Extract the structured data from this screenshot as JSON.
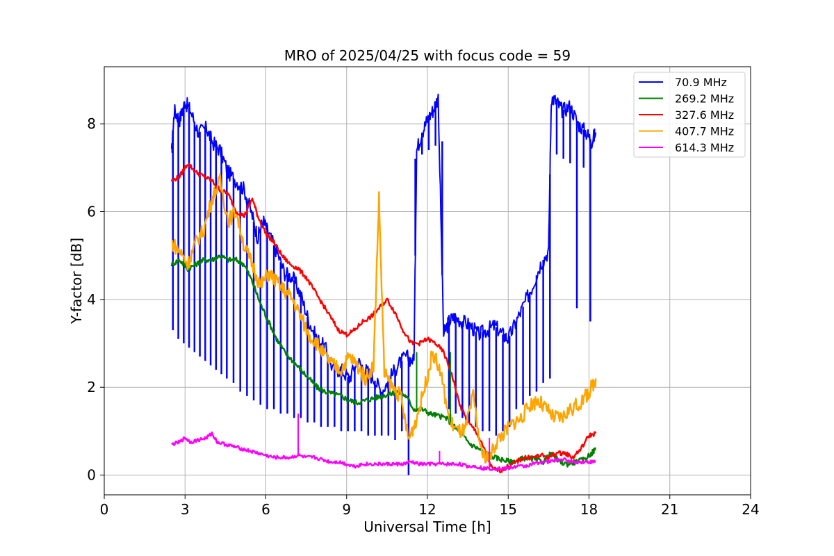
{
  "chart_data": {
    "type": "line",
    "title": "MRO of 2025/04/25 with focus code = 59",
    "xlabel": "Universal Time [h]",
    "ylabel": "Y-factor [dB]",
    "xlim": [
      0,
      24
    ],
    "ylim": [
      -0.45,
      9.3
    ],
    "xticks": [
      0,
      3,
      6,
      9,
      12,
      15,
      18,
      21,
      24
    ],
    "yticks": [
      0,
      2,
      4,
      6,
      8
    ],
    "grid": true,
    "legend_position": "top-right",
    "series": [
      {
        "name": " 70.9 MHz",
        "color": "#0000ff",
        "x": [
          2.5,
          2.6,
          2.8,
          3.0,
          3.2,
          3.5,
          3.8,
          4.0,
          4.3,
          4.6,
          4.9,
          5.2,
          5.5,
          5.7,
          5.9,
          6.1,
          6.4,
          6.7,
          7.0,
          7.3,
          7.6,
          7.9,
          8.2,
          8.5,
          8.8,
          9.1,
          9.4,
          9.7,
          10.0,
          10.3,
          10.6,
          10.9,
          11.2,
          11.5,
          11.6,
          11.8,
          12.0,
          12.2,
          12.4,
          12.6,
          12.8,
          13.0,
          13.3,
          13.6,
          13.9,
          14.2,
          14.5,
          14.8,
          15.0,
          15.3,
          15.6,
          15.9,
          16.2,
          16.5,
          16.6,
          16.8,
          17.0,
          17.3,
          17.6,
          17.9,
          18.1,
          18.25
        ],
        "y": [
          7.3,
          8.3,
          8.1,
          8.5,
          8.3,
          7.8,
          7.9,
          7.6,
          7.4,
          6.9,
          6.7,
          6.5,
          5.9,
          5.4,
          5.8,
          5.5,
          5.1,
          4.6,
          4.5,
          4.1,
          3.5,
          3.1,
          2.9,
          2.4,
          2.4,
          2.2,
          2.6,
          2.4,
          2.2,
          1.9,
          2.2,
          2.5,
          2.7,
          2.6,
          7.4,
          7.8,
          8.1,
          8.3,
          8.6,
          3.2,
          3.5,
          3.6,
          3.5,
          3.4,
          3.2,
          3.3,
          3.4,
          3.2,
          3.1,
          3.5,
          3.9,
          4.3,
          4.8,
          5.1,
          8.6,
          8.5,
          8.3,
          8.4,
          8.0,
          7.8,
          7.6,
          7.8
        ],
        "dip_x": [
          2.55,
          2.75,
          2.95,
          3.15,
          3.35,
          3.55,
          3.75,
          3.95,
          4.15,
          4.35,
          4.55,
          4.8,
          5.05,
          5.3,
          5.55,
          5.8,
          6.05,
          6.3,
          6.55,
          6.8,
          7.05,
          7.3,
          7.55,
          7.8,
          8.05,
          8.3,
          8.55,
          8.8,
          9.05,
          9.3,
          9.55,
          9.8,
          10.05,
          10.3,
          10.55,
          10.8,
          11.05,
          11.3,
          11.55,
          11.8,
          12.05,
          12.3,
          12.55,
          12.8,
          13.05,
          13.3,
          13.55,
          13.8,
          14.05,
          14.3,
          14.55,
          14.8,
          15.05,
          15.3,
          15.55,
          15.8,
          16.05,
          16.3,
          16.55,
          16.8,
          17.05,
          17.3,
          17.55,
          17.8,
          18.05
        ],
        "dip_y": [
          3.3,
          3.1,
          3.0,
          2.9,
          2.8,
          2.7,
          2.6,
          2.5,
          2.4,
          2.3,
          2.2,
          2.1,
          1.9,
          1.8,
          1.7,
          1.6,
          1.5,
          1.5,
          1.4,
          1.4,
          1.3,
          1.3,
          1.2,
          1.2,
          1.1,
          1.1,
          1.1,
          1.0,
          1.0,
          1.0,
          1.0,
          0.9,
          0.9,
          0.9,
          0.9,
          0.8,
          1.0,
          0.0,
          7.2,
          7.3,
          7.4,
          7.5,
          7.6,
          1.5,
          1.4,
          1.3,
          1.2,
          1.1,
          1.0,
          1.0,
          0.9,
          1.0,
          1.1,
          1.5,
          1.6,
          1.8,
          1.9,
          2.1,
          2.2,
          7.3,
          7.2,
          7.1,
          3.8,
          7.0,
          3.5
        ]
      },
      {
        "name": "269.2 MHz",
        "color": "#008000",
        "x": [
          2.5,
          2.8,
          3.1,
          3.4,
          3.7,
          4.0,
          4.3,
          4.6,
          4.9,
          5.2,
          5.5,
          5.8,
          6.1,
          6.4,
          6.7,
          7.0,
          7.3,
          7.6,
          7.9,
          8.2,
          8.5,
          8.8,
          9.1,
          9.4,
          9.7,
          10.0,
          10.3,
          10.6,
          10.9,
          11.2,
          11.5,
          11.8,
          12.1,
          12.4,
          12.7,
          13.0,
          13.3,
          13.6,
          13.9,
          14.2,
          14.5,
          14.8,
          15.1,
          15.4,
          15.7,
          16.0,
          16.3,
          16.6,
          16.9,
          17.2,
          17.5,
          17.8,
          18.1,
          18.25
        ],
        "y": [
          4.8,
          4.9,
          4.7,
          4.8,
          4.9,
          4.9,
          5.0,
          4.9,
          4.9,
          4.8,
          4.4,
          3.9,
          3.5,
          3.1,
          2.8,
          2.6,
          2.4,
          2.2,
          2.0,
          1.9,
          1.85,
          1.8,
          1.7,
          1.65,
          1.7,
          1.75,
          1.8,
          1.85,
          1.9,
          1.8,
          1.5,
          1.5,
          1.4,
          1.35,
          1.3,
          1.1,
          0.9,
          0.7,
          0.6,
          0.5,
          0.4,
          0.35,
          0.3,
          0.35,
          0.4,
          0.35,
          0.3,
          0.5,
          0.3,
          0.25,
          0.3,
          0.35,
          0.5,
          0.6
        ]
      },
      {
        "name": "327.6 MHz",
        "color": "#ff0000",
        "x": [
          2.5,
          2.8,
          3.1,
          3.4,
          3.7,
          4.0,
          4.3,
          4.6,
          4.9,
          5.2,
          5.5,
          5.7,
          6.0,
          6.3,
          6.6,
          6.9,
          7.2,
          7.5,
          7.8,
          8.1,
          8.4,
          8.7,
          9.0,
          9.3,
          9.6,
          9.9,
          10.2,
          10.5,
          10.8,
          11.1,
          11.4,
          11.7,
          12.0,
          12.3,
          12.6,
          12.9,
          13.2,
          13.5,
          13.8,
          14.1,
          14.4,
          14.7,
          15.0,
          15.3,
          15.6,
          15.9,
          16.2,
          16.5,
          16.8,
          17.1,
          17.4,
          17.7,
          18.0,
          18.25
        ],
        "y": [
          6.7,
          6.8,
          7.1,
          6.9,
          6.8,
          6.7,
          6.5,
          6.4,
          6.0,
          5.9,
          6.3,
          5.9,
          5.5,
          5.3,
          5.0,
          4.8,
          4.7,
          4.5,
          4.2,
          3.9,
          3.6,
          3.3,
          3.2,
          3.3,
          3.5,
          3.6,
          3.8,
          4.0,
          3.7,
          3.3,
          3.0,
          3.0,
          3.1,
          3.0,
          2.8,
          2.3,
          1.6,
          1.2,
          1.0,
          0.6,
          0.15,
          0.1,
          0.2,
          0.3,
          0.4,
          0.4,
          0.45,
          0.4,
          0.5,
          0.5,
          0.4,
          0.6,
          0.9,
          0.95
        ]
      },
      {
        "name": "407.7 MHz",
        "color": "#ffa500",
        "x": [
          2.5,
          2.8,
          3.1,
          3.4,
          3.7,
          4.0,
          4.3,
          4.6,
          4.9,
          5.2,
          5.5,
          5.8,
          6.1,
          6.4,
          6.7,
          7.0,
          7.3,
          7.6,
          7.9,
          8.2,
          8.5,
          8.8,
          9.1,
          9.4,
          9.7,
          10.0,
          10.2,
          10.4,
          10.7,
          11.0,
          11.3,
          11.6,
          11.9,
          12.2,
          12.5,
          12.8,
          13.1,
          13.4,
          13.7,
          14.0,
          14.3,
          14.6,
          14.9,
          15.2,
          15.5,
          15.8,
          16.1,
          16.4,
          16.7,
          17.0,
          17.3,
          17.6,
          17.9,
          18.1,
          18.25
        ],
        "y": [
          5.3,
          5.1,
          4.8,
          5.3,
          5.6,
          6.3,
          6.7,
          5.8,
          6.0,
          5.2,
          4.8,
          4.3,
          4.6,
          4.4,
          4.2,
          4.0,
          3.6,
          3.2,
          3.0,
          2.7,
          2.5,
          2.4,
          2.7,
          2.5,
          2.2,
          2.5,
          6.3,
          2.3,
          2.0,
          1.8,
          0.8,
          1.3,
          2.0,
          2.8,
          2.3,
          1.3,
          1.0,
          1.0,
          1.8,
          0.5,
          0.4,
          0.8,
          1.0,
          1.2,
          1.3,
          1.6,
          1.7,
          1.5,
          1.3,
          1.3,
          1.5,
          1.6,
          1.8,
          2.0,
          2.2
        ]
      },
      {
        "name": "614.3 MHz",
        "color": "#ff00ff",
        "x": [
          2.5,
          2.8,
          3.0,
          3.2,
          3.5,
          3.8,
          4.0,
          4.2,
          4.5,
          4.8,
          5.1,
          5.4,
          5.7,
          6.0,
          6.3,
          6.6,
          6.9,
          7.2,
          7.5,
          7.8,
          8.1,
          8.4,
          8.7,
          9.0,
          9.3,
          9.6,
          9.9,
          10.2,
          10.5,
          10.8,
          11.1,
          11.4,
          11.7,
          12.0,
          12.3,
          12.6,
          12.9,
          13.2,
          13.5,
          13.8,
          14.1,
          14.4,
          14.7,
          15.0,
          15.3,
          15.6,
          15.9,
          16.2,
          16.5,
          16.8,
          17.1,
          17.4,
          17.7,
          18.0,
          18.25
        ],
        "y": [
          0.7,
          0.75,
          0.85,
          0.75,
          0.8,
          0.85,
          0.95,
          0.75,
          0.7,
          0.65,
          0.6,
          0.55,
          0.5,
          0.45,
          0.4,
          0.4,
          0.4,
          0.45,
          0.4,
          0.4,
          0.35,
          0.3,
          0.3,
          0.25,
          0.2,
          0.25,
          0.25,
          0.25,
          0.25,
          0.25,
          0.25,
          0.3,
          0.25,
          0.25,
          0.25,
          0.25,
          0.25,
          0.25,
          0.2,
          0.2,
          0.15,
          0.15,
          0.15,
          0.15,
          0.2,
          0.2,
          0.25,
          0.3,
          0.3,
          0.35,
          0.35,
          0.3,
          0.3,
          0.3,
          0.3
        ]
      }
    ],
    "spikes": [
      {
        "series": 4,
        "x": 7.2,
        "y": 1.4
      },
      {
        "series": 4,
        "x": 12.45,
        "y": 0.55
      },
      {
        "series": 4,
        "x": 14.3,
        "y": 0.85
      },
      {
        "series": 1,
        "x": 12.85,
        "y": 2.8
      },
      {
        "series": 1,
        "x": 11.6,
        "y": 2.8
      }
    ]
  }
}
